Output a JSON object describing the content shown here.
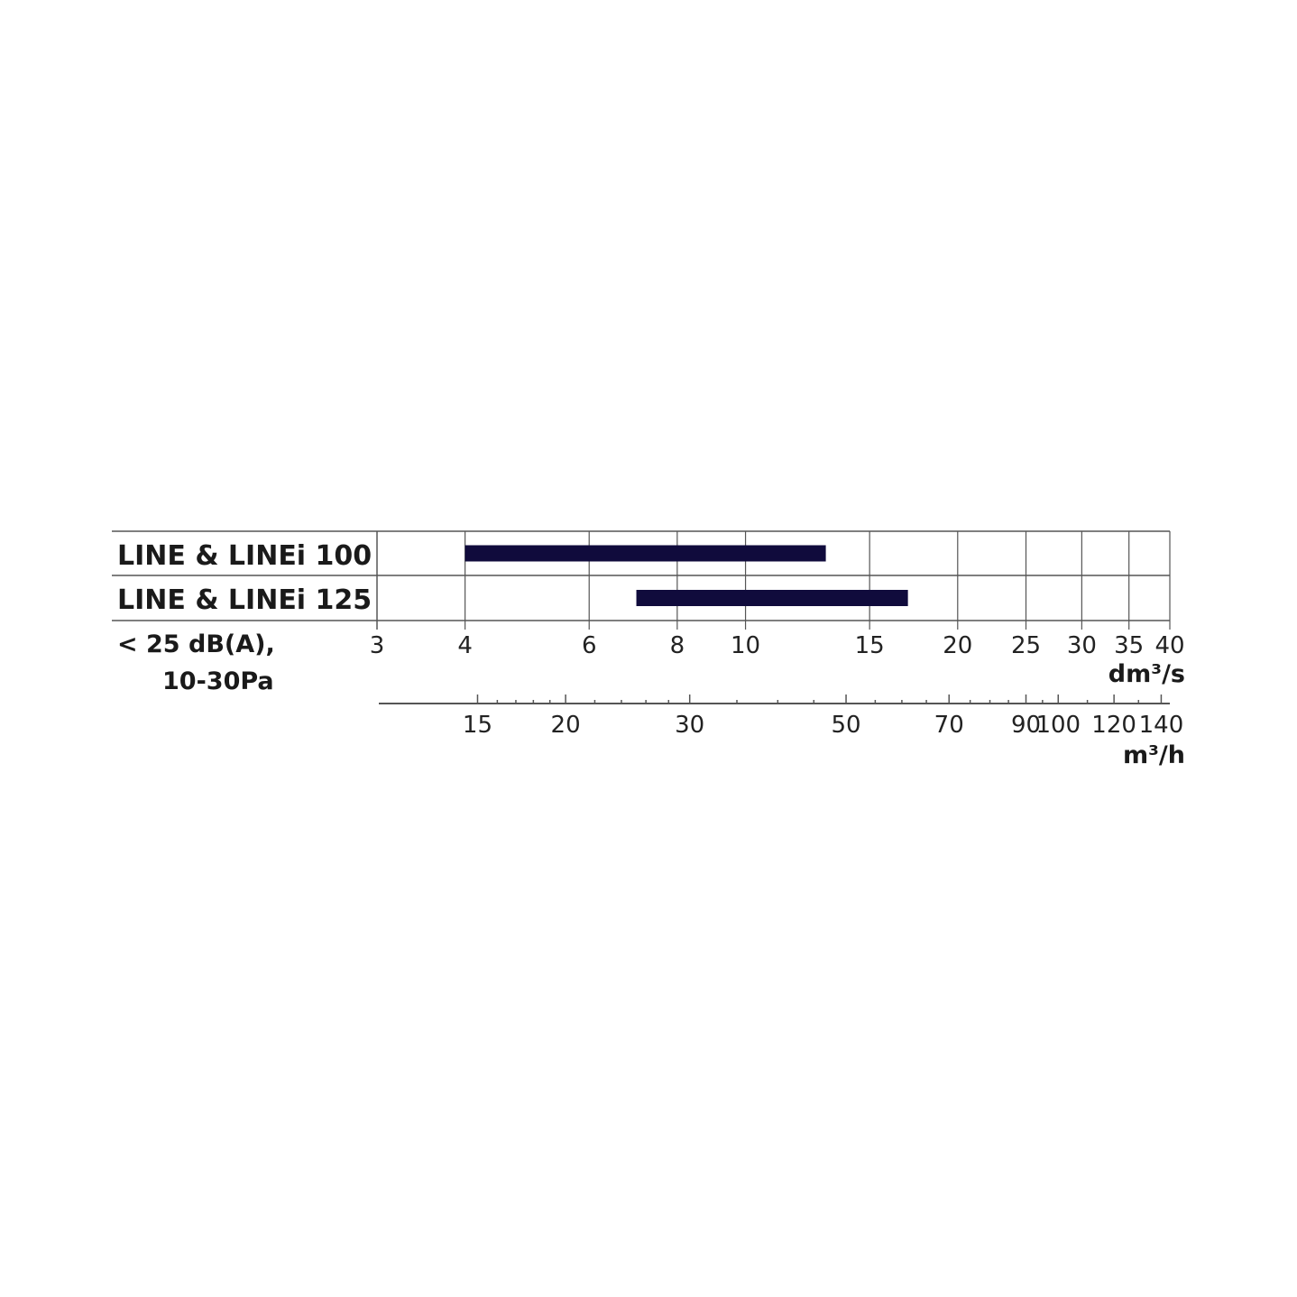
{
  "chart_data": {
    "type": "bar",
    "orientation": "horizontal-range",
    "categories": [
      "LINE & LINEi 100",
      "LINE & LINEi 125"
    ],
    "series": [
      {
        "values": [
          [
            4,
            13
          ],
          [
            7,
            17
          ]
        ],
        "color": "#100b3c"
      }
    ],
    "condition_label": [
      "< 25 dB(A),",
      "10-30Pa"
    ],
    "x_axis": {
      "scale": "log",
      "range": [
        3,
        40
      ],
      "ticks": [
        3,
        4,
        6,
        8,
        10,
        15,
        20,
        25,
        30,
        35,
        40
      ],
      "unit": "dm³/s",
      "grid": true
    },
    "x2_axis": {
      "scale": "log",
      "range": [
        10.8,
        144
      ],
      "ticks": [
        15,
        20,
        30,
        50,
        70,
        90,
        100,
        120,
        140
      ],
      "minor_ticks": [
        16,
        17,
        18,
        19,
        22,
        24,
        26,
        28,
        35,
        40,
        45,
        55,
        60,
        65,
        75,
        80,
        85,
        95,
        110,
        130
      ],
      "unit": "m³/h"
    }
  }
}
